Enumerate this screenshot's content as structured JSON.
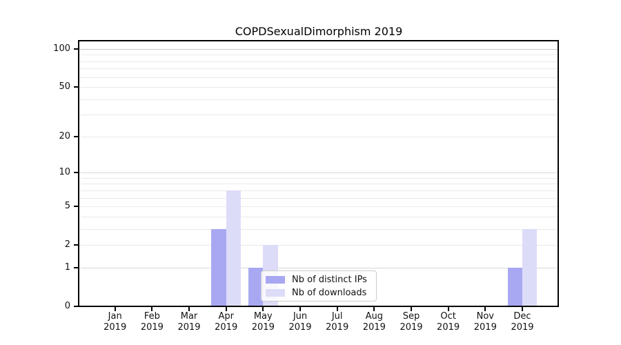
{
  "chart_data": {
    "type": "bar",
    "title": "COPDSexualDimorphism 2019",
    "yscale": "log1p",
    "ylim": [
      0,
      117
    ],
    "yticks": [
      0,
      1,
      2,
      5,
      10,
      20,
      50,
      100
    ],
    "categories": [
      {
        "month": "Jan",
        "year": "2019"
      },
      {
        "month": "Feb",
        "year": "2019"
      },
      {
        "month": "Mar",
        "year": "2019"
      },
      {
        "month": "Apr",
        "year": "2019"
      },
      {
        "month": "May",
        "year": "2019"
      },
      {
        "month": "Jun",
        "year": "2019"
      },
      {
        "month": "Jul",
        "year": "2019"
      },
      {
        "month": "Aug",
        "year": "2019"
      },
      {
        "month": "Sep",
        "year": "2019"
      },
      {
        "month": "Oct",
        "year": "2019"
      },
      {
        "month": "Nov",
        "year": "2019"
      },
      {
        "month": "Dec",
        "year": "2019"
      }
    ],
    "series": [
      {
        "name": "Nb of distinct IPs",
        "color": "#a8a8f2",
        "values": [
          0,
          0,
          0,
          3,
          1,
          0,
          0,
          0,
          0,
          0,
          0,
          1
        ]
      },
      {
        "name": "Nb of downloads",
        "color": "#dcdcf8",
        "values": [
          0,
          0,
          0,
          7,
          2,
          0,
          0,
          0,
          0,
          0,
          0,
          3
        ]
      }
    ],
    "grid": {
      "on": true,
      "major_values": [
        1,
        10,
        100
      ],
      "minor_values": [
        2,
        3,
        4,
        5,
        6,
        7,
        8,
        9,
        20,
        30,
        40,
        50,
        60,
        70,
        80,
        90
      ]
    },
    "legend": {
      "position": "inside lower-center",
      "entries": [
        "Nb of distinct IPs",
        "Nb of downloads"
      ]
    }
  },
  "colors": {
    "background": "#ffffff",
    "spine": "#000000",
    "grid_top": "#c2c2c2",
    "grid_major": "#d8d8d8",
    "grid_minor": "#e9e9e9",
    "legend_border": "#cccccc",
    "tick_text": "#111111"
  }
}
